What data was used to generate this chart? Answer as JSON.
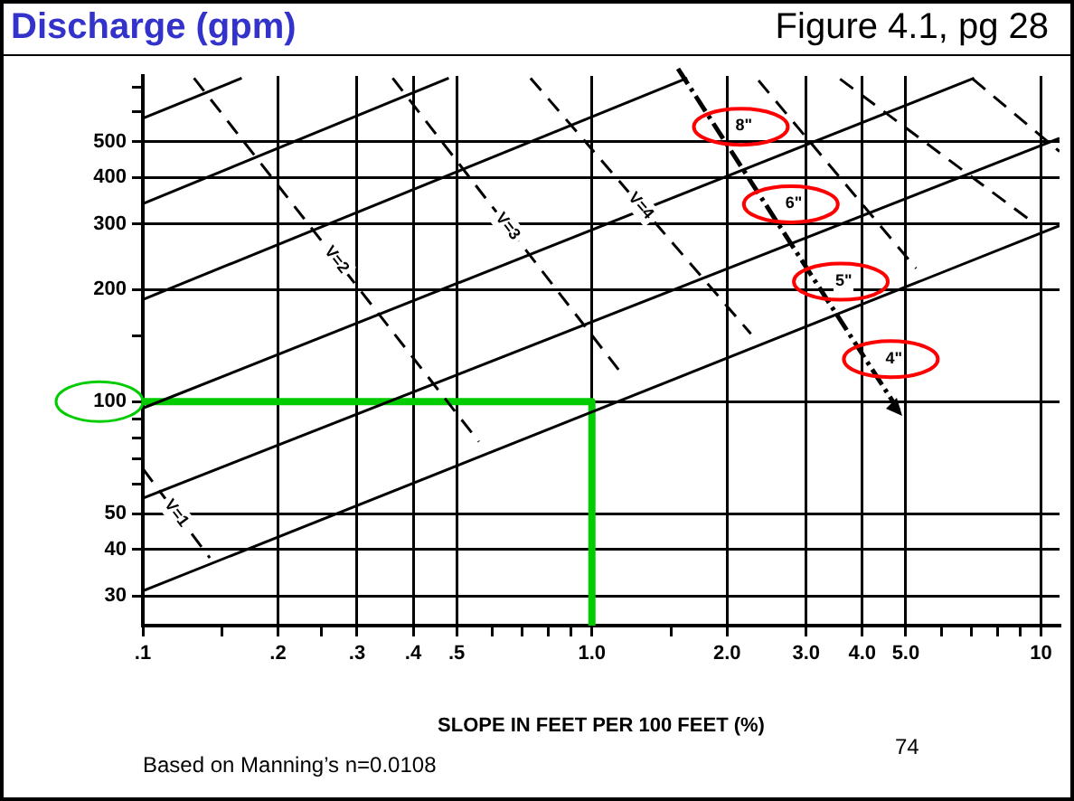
{
  "chart_data": {
    "type": "line",
    "title": "Discharge (gpm)",
    "xlabel": "SLOPE IN FEET PER 100 FEET (%)",
    "annotations": [
      "Figure 4.1, pg 28",
      "Based on Manning’s n=0.0108",
      "74",
      "8\"",
      "6\"",
      "5\"",
      "4\""
    ],
    "log": "xy",
    "grid": true,
    "legend": false,
    "marker": "none",
    "xlim": [
      0.1,
      11
    ],
    "ylim": [
      25,
      750
    ],
    "xticks": [
      {
        "value": 0.1,
        "label": ".1"
      },
      {
        "value": 0.15,
        "label": null
      },
      {
        "value": 0.2,
        "label": ".2"
      },
      {
        "value": 0.25,
        "label": null
      },
      {
        "value": 0.3,
        "label": ".3"
      },
      {
        "value": 0.4,
        "label": ".4"
      },
      {
        "value": 0.5,
        "label": ".5"
      },
      {
        "value": 0.6,
        "label": null
      },
      {
        "value": 0.7,
        "label": null
      },
      {
        "value": 0.8,
        "label": null
      },
      {
        "value": 0.9,
        "label": null
      },
      {
        "value": 1,
        "label": "1.0"
      },
      {
        "value": 1.5,
        "label": null
      },
      {
        "value": 2,
        "label": "2.0"
      },
      {
        "value": 3,
        "label": "3.0"
      },
      {
        "value": 4,
        "label": "4.0"
      },
      {
        "value": 5,
        "label": "5.0"
      },
      {
        "value": 6,
        "label": null
      },
      {
        "value": 7,
        "label": null
      },
      {
        "value": 8,
        "label": null
      },
      {
        "value": 9,
        "label": null
      },
      10
    ],
    "yticks": [
      30,
      40,
      50,
      {
        "value": 60,
        "label": null
      },
      {
        "value": 70,
        "label": null
      },
      {
        "value": 80,
        "label": null
      },
      {
        "value": 90,
        "label": null
      },
      100,
      {
        "value": 150,
        "label": null
      },
      200,
      300,
      400,
      500,
      {
        "value": 600,
        "label": null
      },
      {
        "value": 700,
        "label": null
      }
    ],
    "series": [
      {
        "color": "#000000",
        "line_style": "solid",
        "x": [
          0.1,
          11
        ],
        "values": [
          31,
          297
        ]
      },
      {
        "color": "#000000",
        "line_style": "solid",
        "x": [
          0.1,
          11
        ],
        "values": [
          55,
          510
        ]
      },
      {
        "color": "#000000",
        "line_style": "solid",
        "x": [
          0.1,
          7.1
        ],
        "values": [
          96,
          740
        ]
      },
      {
        "color": "#000000",
        "line_style": "solid",
        "x": [
          0.1,
          1.63
        ],
        "values": [
          188,
          740
        ]
      },
      {
        "color": "#000000",
        "line_style": "solid",
        "x": [
          0.1,
          0.48
        ],
        "values": [
          340,
          740
        ]
      },
      {
        "color": "#000000",
        "line_style": "solid",
        "x": [
          0.1,
          0.166
        ],
        "values": [
          577,
          740
        ]
      },
      {
        "name": "V=1",
        "color": "#000000",
        "line_style": "dashed",
        "x": [
          0.1,
          0.141
        ],
        "values": [
          66,
          38
        ]
      },
      {
        "name": "V=2",
        "color": "#000000",
        "line_style": "dashed",
        "x": [
          0.13,
          0.56
        ],
        "values": [
          740,
          78
        ]
      },
      {
        "name": "V=3",
        "color": "#000000",
        "line_style": "dashed",
        "x": [
          0.36,
          1.17
        ],
        "values": [
          740,
          118
        ]
      },
      {
        "name": "V=4",
        "color": "#000000",
        "line_style": "dashed",
        "x": [
          0.73,
          2.26
        ],
        "values": [
          740,
          152
        ]
      },
      {
        "color": "#000000",
        "line_style": "dashed",
        "x": [
          2.35,
          5.27
        ],
        "values": [
          729,
          228
        ]
      },
      {
        "color": "#000000",
        "line_style": "dashed",
        "x": [
          3.57,
          9.71
        ],
        "values": [
          736,
          300
        ]
      },
      {
        "color": "#000000",
        "line_style": "dashed",
        "x": [
          7.05,
          11
        ],
        "values": [
          736,
          470
        ]
      },
      {
        "color": "#00cc00",
        "line_style": "solid",
        "x": [
          0.1,
          1,
          1
        ],
        "values": [
          100,
          100,
          25
        ]
      }
    ]
  }
}
